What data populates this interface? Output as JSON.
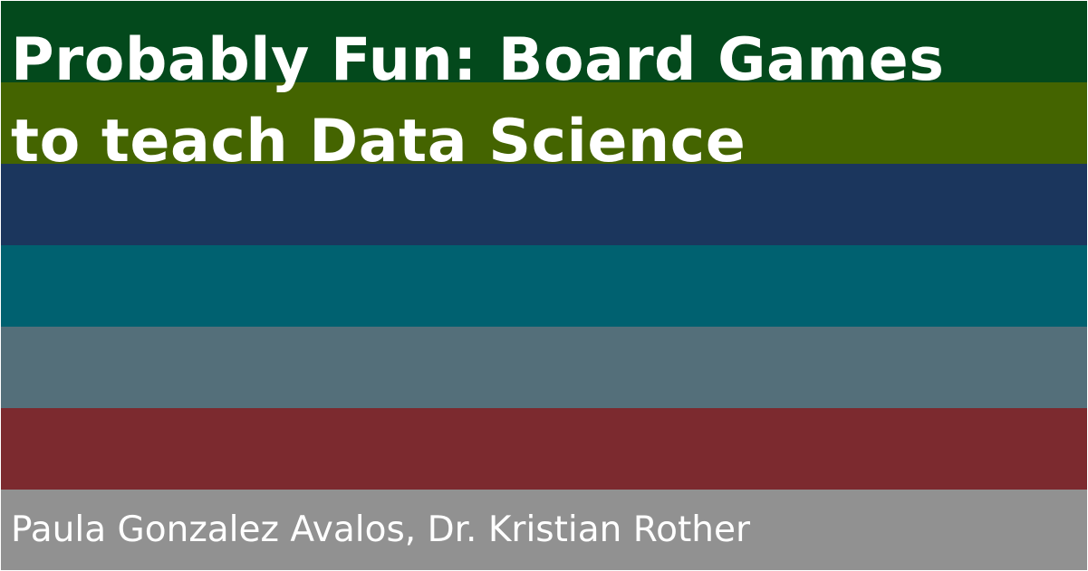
{
  "title": {
    "line1": "Probably Fun: Board Games",
    "line2": "to teach Data Science"
  },
  "authors": "Paula Gonzalez Avalos, Dr. Kristian Rother",
  "stripe_colors": [
    "#03491c",
    "#446400",
    "#1b365d",
    "#006170",
    "#546f7a",
    "#7c2a2f",
    "#919191"
  ]
}
